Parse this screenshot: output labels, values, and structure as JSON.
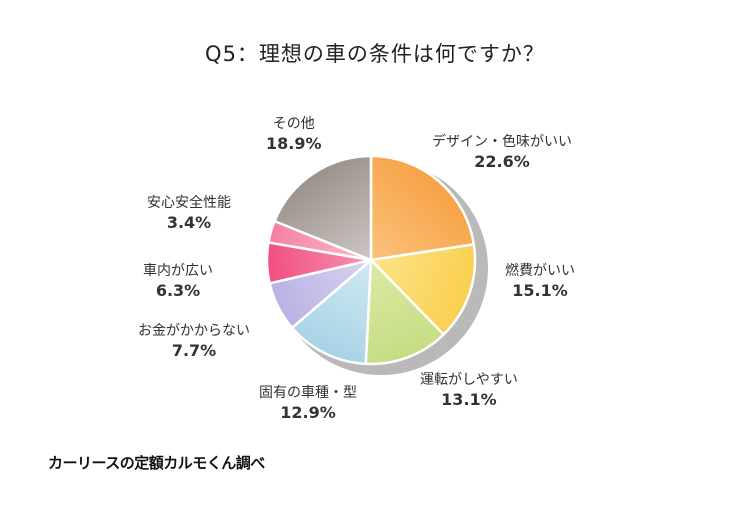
{
  "chart_data": {
    "type": "pie",
    "title": "Q5：理想の車の条件は何ですか？",
    "unit": "%",
    "slices": [
      {
        "label": "デザイン・色味がいい",
        "value": 22.6,
        "color": "#f7a245",
        "color2": "#fbc27d"
      },
      {
        "label": "燃費がいい",
        "value": 15.1,
        "color": "#f9cf4e",
        "color2": "#fde38a"
      },
      {
        "label": "運転がしやすい",
        "value": 13.1,
        "color": "#c5dd82",
        "color2": "#dbeaa6"
      },
      {
        "label": "固有の車種・型",
        "value": 12.9,
        "color": "#a7d3e6",
        "color2": "#d2e9f2"
      },
      {
        "label": "お金がかからない",
        "value": 7.7,
        "color": "#b9b2e3",
        "color2": "#d8d3f1"
      },
      {
        "label": "車内が広い",
        "value": 6.3,
        "color": "#f04f7e",
        "color2": "#f893b2"
      },
      {
        "label": "安心安全性能",
        "value": 3.4,
        "color": "#f47fa3",
        "color2": "#fbbdd0"
      },
      {
        "label": "その他",
        "value": 18.9,
        "color": "#9b918c",
        "color2": "#cdc6c2"
      }
    ]
  },
  "source": "カーリースの定額カルモくん調べ"
}
